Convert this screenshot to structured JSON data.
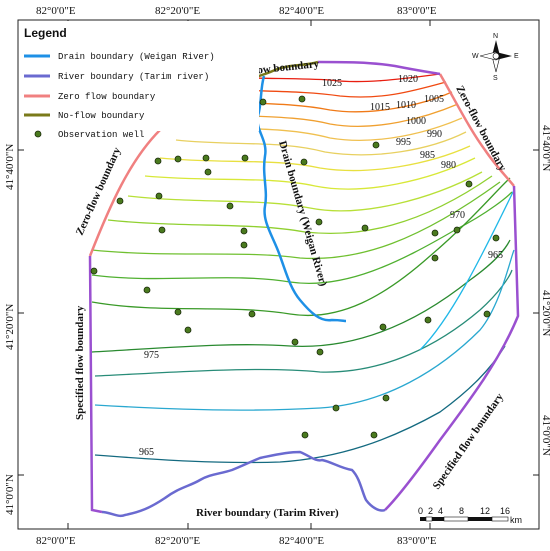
{
  "legend": {
    "title": "Legend",
    "items": [
      {
        "label": "Drain boundary (Weigan River)",
        "color": "#1e90e6",
        "kind": "line"
      },
      {
        "label": "River boundary (Tarim river)",
        "color": "#6a6ad0",
        "kind": "line"
      },
      {
        "label": "Zero flow boundary",
        "color": "#f08080",
        "kind": "line"
      },
      {
        "label": "No-flow boundary",
        "color": "#7a7a1a",
        "kind": "line"
      },
      {
        "label": "Observation well",
        "color": "#4a7a1e",
        "kind": "point"
      }
    ]
  },
  "axes": {
    "top": [
      "82°0'0\"E",
      "82°20'0\"E",
      "82°40'0\"E",
      "83°0'0\"E"
    ],
    "bottom": [
      "82°0'0\"E",
      "82°20'0\"E",
      "82°40'0\"E",
      "83°0'0\"E"
    ],
    "left": [
      "41°40'0\"N",
      "41°20'0\"N",
      "41°0'0\"N"
    ],
    "right": [
      "41°40'0\"N",
      "41°20'0\"N",
      "41°0'0\"N"
    ]
  },
  "boundary_labels": {
    "no_flow": "No-flow boundary",
    "zero_flow_left": "Zero-flow boundary",
    "zero_flow_right": "Zero-flow boundary",
    "drain": "Drain boundary (Weigan River)",
    "specified_left": "Specified flow boundary",
    "specified_right": "Specified flow boundary",
    "river": "River boundary (Tarim River)"
  },
  "contours": {
    "labels": [
      "1025",
      "1020",
      "1015",
      "1010",
      "1005",
      "1000",
      "995",
      "990",
      "985",
      "980",
      "970",
      "965",
      "975",
      "965"
    ],
    "colors": [
      "#e81e10",
      "#f04a12",
      "#f07a18",
      "#f0a030",
      "#f0c050",
      "#e8d060",
      "#e8e040",
      "#d8e838",
      "#b8e038",
      "#90d030",
      "#70c030",
      "#50b030",
      "#3a9a28",
      "#2a8a30",
      "#288c78",
      "#2aa8d0",
      "#20b8e8",
      "#1a7aa0",
      "#146a80"
    ]
  },
  "scale": {
    "ticks": [
      "0",
      "2",
      "4",
      "8",
      "12",
      "16"
    ],
    "unit": "km"
  },
  "north_arrow": {
    "n": "N",
    "s": "S",
    "e": "E",
    "w": "W"
  }
}
